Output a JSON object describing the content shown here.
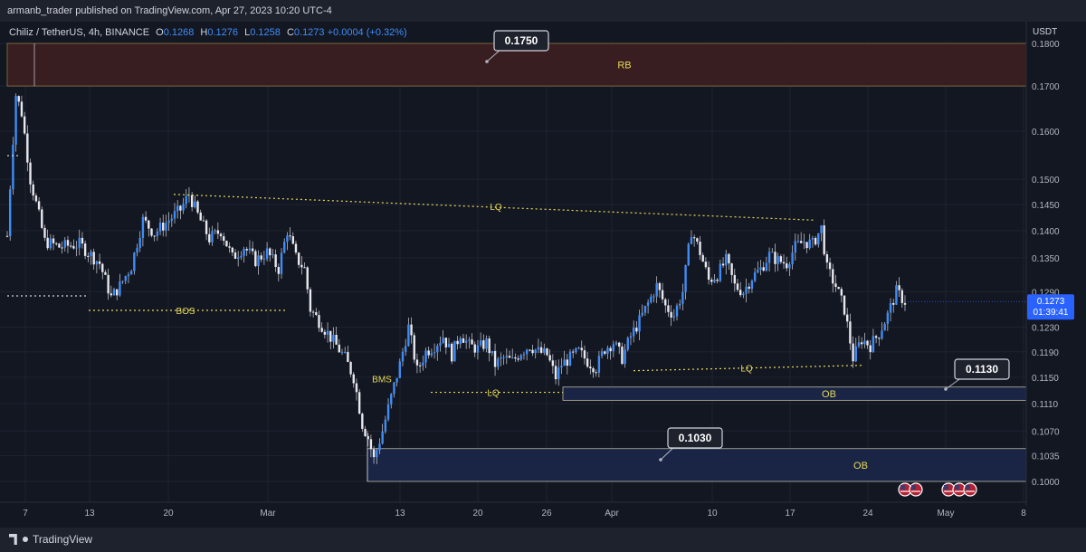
{
  "header": {
    "published_by": "armanb_trader published on TradingView.com, Apr 27, 2023 10:20 UTC-4",
    "symbol": "Chiliz / TetherUS, 4h, BINANCE",
    "open_label": "O",
    "open": "0.1268",
    "high_label": "H",
    "high": "0.1276",
    "low_label": "L",
    "low": "0.1258",
    "close_label": "C",
    "close": "0.1273",
    "change": "+0.0004 (+0.32%)",
    "currency": "USDT"
  },
  "footer": {
    "brand": "TradingView"
  },
  "colors": {
    "background": "#131722",
    "candle": "#3f8cf7",
    "wick": "#d1d4dc",
    "zone_rb": "#3a1e22",
    "zone_ob": "#1a2649",
    "annotation": "#e6d95a",
    "price_tag": "#2962ff"
  },
  "chart_data": {
    "type": "candlestick",
    "scale": "log",
    "ylim": [
      0.0985,
      0.1815
    ],
    "y_ticks": [
      "0.1800",
      "0.1700",
      "0.1600",
      "0.1500",
      "0.1450",
      "0.1400",
      "0.1350",
      "0.1290",
      "0.1230",
      "0.1190",
      "0.1150",
      "0.1110",
      "0.1070",
      "0.1035",
      "0.1000"
    ],
    "x_ticks": [
      "7",
      "13",
      "20",
      "Mar",
      "13",
      "20",
      "26",
      "Apr",
      "10",
      "17",
      "24",
      "May",
      "8"
    ],
    "current_price": "0.1273",
    "countdown": "01:39:41",
    "close_path": [
      [
        0,
        0.139
      ],
      [
        3,
        0.168
      ],
      [
        5,
        0.164
      ],
      [
        8,
        0.15
      ],
      [
        13,
        0.138
      ],
      [
        18,
        0.137
      ],
      [
        25,
        0.1375
      ],
      [
        32,
        0.134
      ],
      [
        36,
        0.128
      ],
      [
        39,
        0.13
      ],
      [
        43,
        0.1335
      ],
      [
        47,
        0.142
      ],
      [
        51,
        0.1395
      ],
      [
        55,
        0.1415
      ],
      [
        60,
        0.144
      ],
      [
        63,
        0.147
      ],
      [
        66,
        0.143
      ],
      [
        70,
        0.1385
      ],
      [
        74,
        0.14
      ],
      [
        78,
        0.135
      ],
      [
        82,
        0.137
      ],
      [
        86,
        0.1345
      ],
      [
        90,
        0.136
      ],
      [
        94,
        0.133
      ],
      [
        97,
        0.14
      ],
      [
        100,
        0.135
      ],
      [
        103,
        0.133
      ],
      [
        105,
        0.126
      ],
      [
        108,
        0.124
      ],
      [
        111,
        0.122
      ],
      [
        114,
        0.12
      ],
      [
        117,
        0.118
      ],
      [
        120,
        0.115
      ],
      [
        123,
        0.108
      ],
      [
        125,
        0.106
      ],
      [
        127,
        0.103
      ],
      [
        130,
        0.107
      ],
      [
        133,
        0.112
      ],
      [
        136,
        0.117
      ],
      [
        139,
        0.123
      ],
      [
        142,
        0.116
      ],
      [
        145,
        0.119
      ],
      [
        148,
        0.12
      ],
      [
        151,
        0.1215
      ],
      [
        154,
        0.1185
      ],
      [
        157,
        0.122
      ],
      [
        160,
        0.12
      ],
      [
        163,
        0.1195
      ],
      [
        166,
        0.1205
      ],
      [
        169,
        0.117
      ],
      [
        172,
        0.118
      ],
      [
        175,
        0.1175
      ],
      [
        178,
        0.119
      ],
      [
        181,
        0.12
      ],
      [
        184,
        0.119
      ],
      [
        187,
        0.1185
      ],
      [
        190,
        0.115
      ],
      [
        192,
        0.117
      ],
      [
        195,
        0.118
      ],
      [
        198,
        0.119
      ],
      [
        201,
        0.1175
      ],
      [
        204,
        0.1165
      ],
      [
        207,
        0.1195
      ],
      [
        210,
        0.1205
      ],
      [
        213,
        0.118
      ],
      [
        216,
        0.1215
      ],
      [
        219,
        0.124
      ],
      [
        222,
        0.127
      ],
      [
        225,
        0.13
      ],
      [
        228,
        0.1265
      ],
      [
        231,
        0.125
      ],
      [
        234,
        0.129
      ],
      [
        237,
        0.14
      ],
      [
        240,
        0.136
      ],
      [
        243,
        0.131
      ],
      [
        246,
        0.132
      ],
      [
        249,
        0.1345
      ],
      [
        252,
        0.13
      ],
      [
        255,
        0.129
      ],
      [
        258,
        0.1315
      ],
      [
        261,
        0.133
      ],
      [
        264,
        0.1355
      ],
      [
        267,
        0.1345
      ],
      [
        270,
        0.134
      ],
      [
        273,
        0.137
      ],
      [
        276,
        0.138
      ],
      [
        279,
        0.1375
      ],
      [
        282,
        0.1405
      ],
      [
        284,
        0.133
      ],
      [
        287,
        0.13
      ],
      [
        290,
        0.126
      ],
      [
        293,
        0.118
      ],
      [
        296,
        0.121
      ],
      [
        299,
        0.12
      ],
      [
        302,
        0.122
      ],
      [
        305,
        0.125
      ],
      [
        308,
        0.129
      ],
      [
        311,
        0.1273
      ]
    ],
    "levels": [
      {
        "label": "BOS",
        "price": 0.1258,
        "style": "dotted"
      },
      {
        "label": "BMS",
        "price": 0.1148,
        "style": "text"
      },
      {
        "label": "LQ",
        "price": 0.147,
        "price_end": 0.142,
        "style": "dotted"
      },
      {
        "label": "LQ",
        "price": 0.1127,
        "style": "dotted"
      },
      {
        "label": "LQ",
        "price": 0.1163,
        "style": "dotted"
      }
    ],
    "zones": [
      {
        "label": "RB",
        "low": 0.17,
        "high": 0.18
      },
      {
        "label": "OB",
        "low": 0.1115,
        "high": 0.1135
      },
      {
        "label": "OB",
        "low": 0.1,
        "high": 0.1045
      }
    ],
    "callouts": [
      {
        "label": "0.1750",
        "target": 0.175
      },
      {
        "label": "0.1130",
        "target": 0.113
      },
      {
        "label": "0.1030",
        "target": 0.103
      }
    ]
  }
}
